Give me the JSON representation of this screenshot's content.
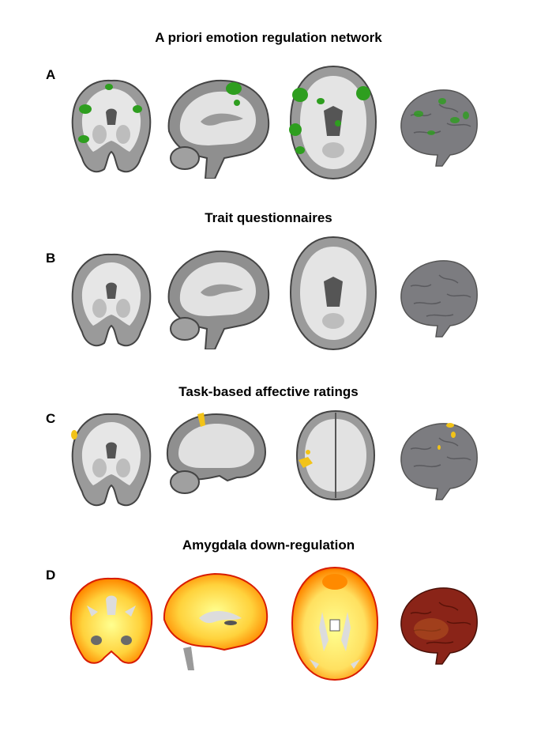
{
  "panels": [
    {
      "letter": "A",
      "title": "A priori emotion regulation network",
      "overlay": "green"
    },
    {
      "letter": "B",
      "title": "Trait questionnaires",
      "overlay": "none"
    },
    {
      "letter": "C",
      "title": "Task-based affective ratings",
      "overlay": "yellow"
    },
    {
      "letter": "D",
      "title": "Amygdala down-regulation",
      "overlay": "heat"
    }
  ],
  "views": [
    "coronal-slice",
    "sagittal-slice",
    "axial-slice",
    "3d-render"
  ],
  "colors": {
    "green": "#2e9e1f",
    "yellow": "#f2c318",
    "heat_high": "#ffff90",
    "heat_mid": "#ffa500",
    "heat_low": "#d81b00",
    "brain_gray": "#8d8d8d",
    "white_matter": "#e8e8e8",
    "render_gray": "#7c7c80",
    "render_red": "#8a2418"
  }
}
